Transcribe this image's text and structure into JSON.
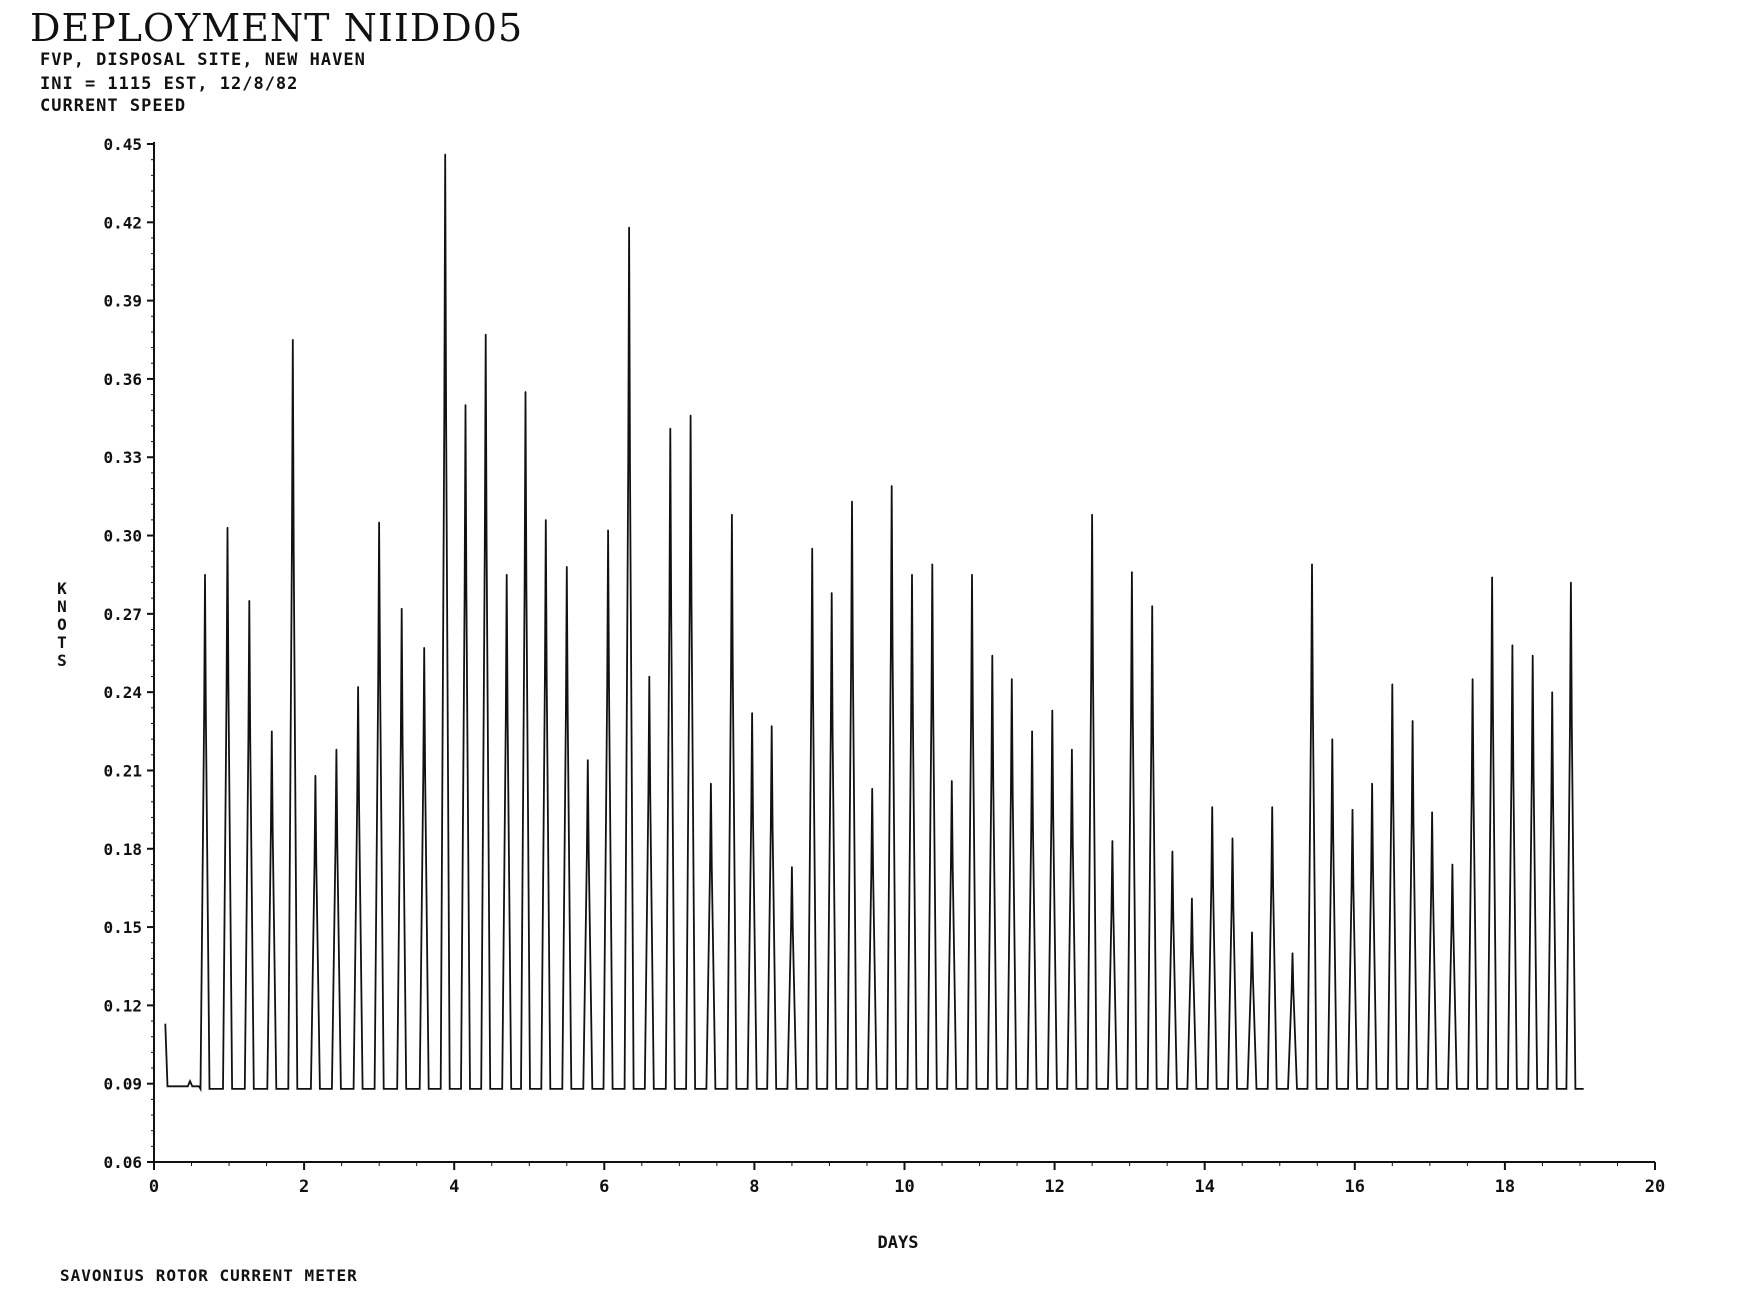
{
  "header": {
    "title": "DEPLOYMENT NIIDD05",
    "line1": "FVP, DISPOSAL SITE, NEW HAVEN",
    "line2": "INI = 1115 EST, 12/8/82",
    "line3": "CURRENT SPEED"
  },
  "footer": {
    "text": "SAVONIUS ROTOR CURRENT METER"
  },
  "colors": {
    "ink": "#111111",
    "background": "#ffffff"
  },
  "chart_data": {
    "type": "line",
    "title": "CURRENT SPEED",
    "xlabel": "DAYS",
    "ylabel": "KNOTS",
    "xlim": [
      0,
      20
    ],
    "ylim": [
      0.06,
      0.45
    ],
    "xticks": [
      "0",
      "2",
      "4",
      "6",
      "8",
      "10",
      "12",
      "14",
      "16",
      "18",
      "20"
    ],
    "yticks": [
      "0.06",
      "0.09",
      "0.12",
      "0.15",
      "0.18",
      "0.21",
      "0.24",
      "0.27",
      "0.30",
      "0.33",
      "0.36",
      "0.39",
      "0.42",
      "0.45"
    ],
    "baseline": 0.088,
    "grid": false,
    "legend": "none",
    "series": [
      {
        "start": [
          [
            0.15,
            0.113
          ],
          [
            0.18,
            0.089
          ],
          [
            0.45,
            0.089
          ],
          [
            0.48,
            0.091
          ],
          [
            0.51,
            0.089
          ],
          [
            0.6,
            0.089
          ]
        ],
        "peak_times": [
          0.68,
          0.98,
          1.27,
          1.57,
          1.85,
          2.15,
          2.43,
          2.72,
          3.0,
          3.3,
          3.6,
          3.88,
          4.15,
          4.42,
          4.7,
          4.95,
          5.22,
          5.5,
          5.78,
          6.05,
          6.33,
          6.6,
          6.88,
          7.15,
          7.42,
          7.7,
          7.97,
          8.23,
          8.5,
          8.77,
          9.03,
          9.3,
          9.57,
          9.83,
          10.1,
          10.37,
          10.63,
          10.9,
          11.17,
          11.43,
          11.7,
          11.97,
          12.23,
          12.5,
          12.77,
          13.03,
          13.3,
          13.57,
          13.83,
          14.1,
          14.37,
          14.63,
          14.9,
          15.17,
          15.43,
          15.7,
          15.97,
          16.23,
          16.5,
          16.77,
          17.03,
          17.3,
          17.57,
          17.83,
          18.1,
          18.37,
          18.63,
          18.88
        ],
        "peak_values": [
          0.285,
          0.303,
          0.275,
          0.225,
          0.375,
          0.208,
          0.218,
          0.242,
          0.305,
          0.272,
          0.257,
          0.446,
          0.35,
          0.377,
          0.285,
          0.355,
          0.306,
          0.288,
          0.214,
          0.302,
          0.418,
          0.246,
          0.341,
          0.346,
          0.205,
          0.308,
          0.232,
          0.227,
          0.173,
          0.295,
          0.278,
          0.313,
          0.203,
          0.319,
          0.285,
          0.289,
          0.206,
          0.285,
          0.254,
          0.245,
          0.225,
          0.233,
          0.218,
          0.308,
          0.183,
          0.286,
          0.273,
          0.179,
          0.161,
          0.196,
          0.184,
          0.148,
          0.196,
          0.14,
          0.289,
          0.222,
          0.195,
          0.205,
          0.243,
          0.229,
          0.194,
          0.174,
          0.245,
          0.284,
          0.258,
          0.254,
          0.24,
          0.282
        ],
        "end": [
          [
            19.04,
            0.088
          ],
          [
            19.05,
            0.088
          ]
        ]
      }
    ]
  }
}
